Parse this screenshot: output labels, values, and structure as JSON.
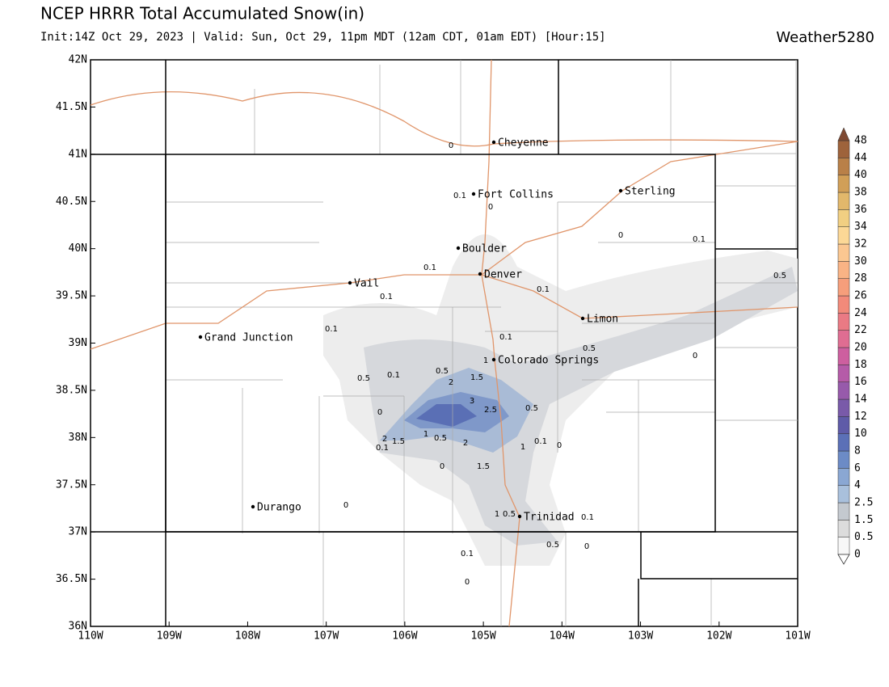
{
  "header": {
    "title": "NCEP HRRR Total Accumulated Snow(in)",
    "subtitle": "Init:14Z Oct 29, 2023 | Valid: Sun, Oct 29, 11pm MDT (12am CDT, 01am EDT) [Hour:15]",
    "brand": "Weather5280"
  },
  "map": {
    "xlim": [
      -110,
      -101
    ],
    "ylim": [
      36,
      42
    ],
    "xticks": [
      {
        "value": -110,
        "label": "110W"
      },
      {
        "value": -109,
        "label": "109W"
      },
      {
        "value": -108,
        "label": "108W"
      },
      {
        "value": -107,
        "label": "107W"
      },
      {
        "value": -106,
        "label": "106W"
      },
      {
        "value": -105,
        "label": "105W"
      },
      {
        "value": -104,
        "label": "104W"
      },
      {
        "value": -103,
        "label": "103W"
      },
      {
        "value": -102,
        "label": "102W"
      },
      {
        "value": -101,
        "label": "101W"
      }
    ],
    "yticks": [
      {
        "value": 36,
        "label": "36N"
      },
      {
        "value": 36.5,
        "label": "36.5N"
      },
      {
        "value": 37,
        "label": "37N"
      },
      {
        "value": 37.5,
        "label": "37.5N"
      },
      {
        "value": 38,
        "label": "38N"
      },
      {
        "value": 38.5,
        "label": "38.5N"
      },
      {
        "value": 39,
        "label": "39N"
      },
      {
        "value": 39.5,
        "label": "39.5N"
      },
      {
        "value": 40,
        "label": "40N"
      },
      {
        "value": 40.5,
        "label": "40.5N"
      },
      {
        "value": 41,
        "label": "41N"
      },
      {
        "value": 41.5,
        "label": "41.5N"
      },
      {
        "value": 42,
        "label": "42N"
      }
    ],
    "cities": [
      "Cheyenne",
      "Fort Collins",
      "Sterling",
      "Boulder",
      "Denver",
      "Vail",
      "Limon",
      "Grand Junction",
      "Colorado Springs",
      "Durango",
      "Trinidad"
    ],
    "point_values": [
      0,
      0.1,
      0,
      0,
      0.1,
      0.1,
      0.5,
      0.1,
      0.1,
      0.1,
      0.1,
      0.5,
      0,
      1,
      0.5,
      0.1,
      0.5,
      1.5,
      2,
      3,
      2.5,
      0.5,
      0,
      1,
      0.5,
      2,
      1.5,
      0.1,
      2,
      1,
      0.1,
      0,
      0,
      1.5,
      0,
      1,
      0.5,
      0.1,
      0.5,
      0,
      0.1,
      0
    ]
  },
  "colorbar": {
    "levels": [
      0,
      0.5,
      1.5,
      2.5,
      4,
      6,
      8,
      10,
      12,
      14,
      16,
      18,
      20,
      22,
      24,
      26,
      28,
      30,
      32,
      34,
      36,
      38,
      40,
      44,
      48
    ],
    "colors": [
      "#f7f7f7",
      "#dcdcdc",
      "#c4c9cf",
      "#a9c0dc",
      "#8aa7d3",
      "#6c8bc6",
      "#5b70b7",
      "#5f5ba8",
      "#795aa9",
      "#975aab",
      "#b55ba8",
      "#cd5f9f",
      "#df6d92",
      "#ea7a84",
      "#f28a7a",
      "#f69e7b",
      "#f9b385",
      "#fbc791",
      "#fcd896",
      "#f1cf82",
      "#e2b86b",
      "#d19f57",
      "#b98048",
      "#9e633b",
      "#7f4a33"
    ]
  }
}
